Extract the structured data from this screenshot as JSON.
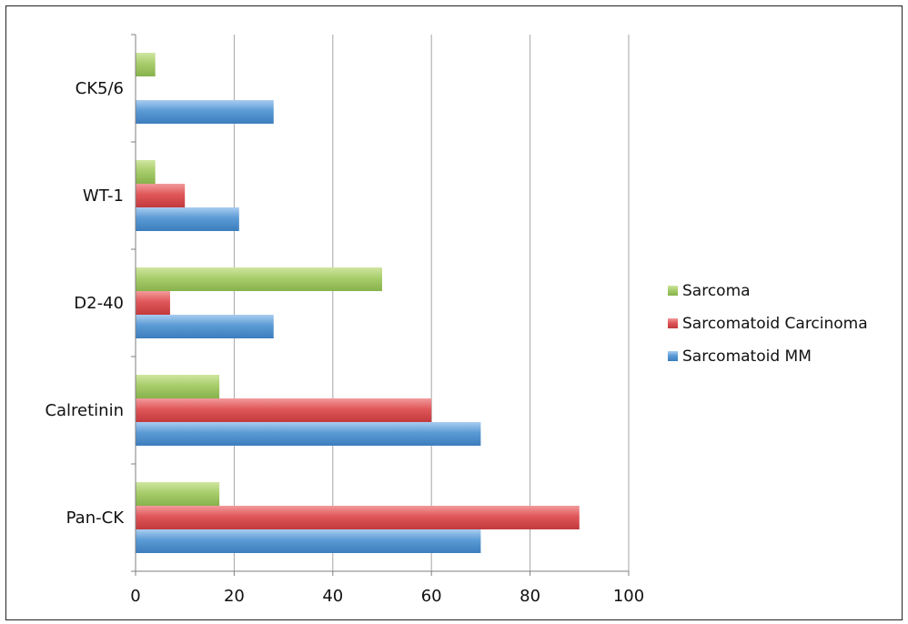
{
  "chart_data": {
    "type": "bar",
    "orientation": "horizontal",
    "categories": [
      "CK5/6",
      "WT-1",
      "D2-40",
      "Calretinin",
      "Pan-CK"
    ],
    "series": [
      {
        "name": "Sarcoma",
        "values": [
          4,
          4,
          50,
          17,
          17
        ],
        "color": "#a8cd6c"
      },
      {
        "name": "Sarcomatoid Carcinoma",
        "values": [
          0,
          10,
          7,
          60,
          90
        ],
        "color": "#e0575a"
      },
      {
        "name": "Sarcomatoid MM",
        "values": [
          28,
          21,
          28,
          70,
          70
        ],
        "color": "#5b9bd5"
      }
    ],
    "xlim": [
      0,
      100
    ],
    "xticks": [
      0,
      20,
      40,
      60,
      80,
      100
    ],
    "grid": "vertical",
    "legend": "right"
  }
}
